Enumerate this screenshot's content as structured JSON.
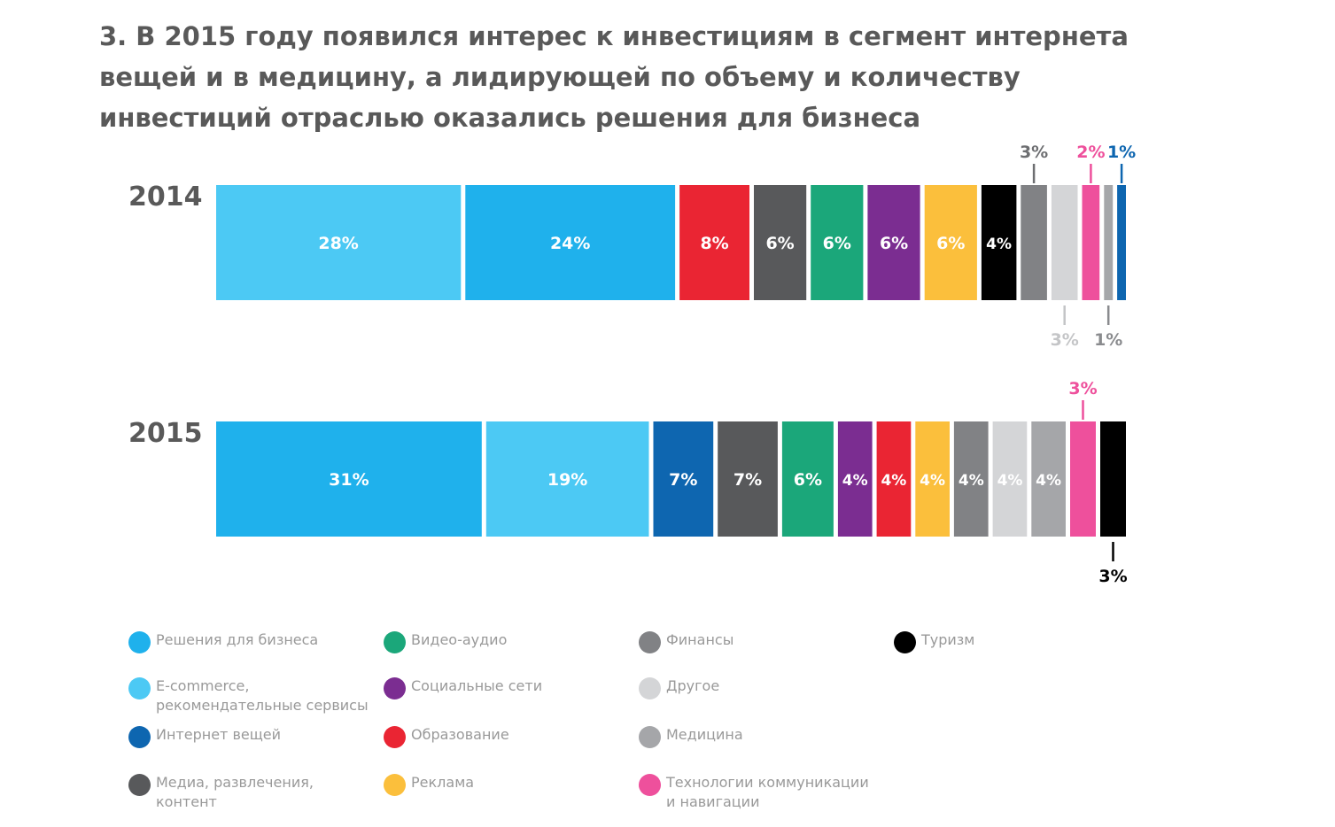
{
  "title": "3. В 2015 году появился интерес к инвестициям в сегмент интернета вещей и в медицину, а лидирующей по объему и количеству инвестиций отраслью оказались решения для бизнеса",
  "chart_data": {
    "type": "bar",
    "orientation": "horizontal",
    "stacked": true,
    "normalized_100": true,
    "categories": [
      {
        "key": "business",
        "name": "Решения для бизнеса",
        "color": "#1fb1ec"
      },
      {
        "key": "ecommerce",
        "name": "E-commerce,\nрекомендательные сервисы",
        "color": "#4cc9f4"
      },
      {
        "key": "iot",
        "name": "Интернет вещей",
        "color": "#0e66b0"
      },
      {
        "key": "media",
        "name": "Медиа, развлечения,\nконтент",
        "color": "#58595b"
      },
      {
        "key": "video",
        "name": "Видео-аудио",
        "color": "#1ba77a"
      },
      {
        "key": "social",
        "name": "Социальные сети",
        "color": "#7b2d91"
      },
      {
        "key": "education",
        "name": "Образование",
        "color": "#ea2533"
      },
      {
        "key": "ads",
        "name": "Реклама",
        "color": "#fbbf3c"
      },
      {
        "key": "finance",
        "name": "Финансы",
        "color": "#818285"
      },
      {
        "key": "other",
        "name": "Другое",
        "color": "#d4d5d7"
      },
      {
        "key": "medicine",
        "name": "Медицина",
        "color": "#a5a6a9"
      },
      {
        "key": "telecom",
        "name": "Технологии коммуникации\nи навигации",
        "color": "#ee509c"
      },
      {
        "key": "tourism",
        "name": "Туризм",
        "color": "#000000"
      }
    ],
    "bars": [
      {
        "year": "2014",
        "segments": [
          {
            "key": "ecommerce",
            "value": 28,
            "label": "28%"
          },
          {
            "key": "business",
            "value": 24,
            "label": "24%"
          },
          {
            "key": "education",
            "value": 8,
            "label": "8%"
          },
          {
            "key": "media",
            "value": 6,
            "label": "6%"
          },
          {
            "key": "video",
            "value": 6,
            "label": "6%"
          },
          {
            "key": "social",
            "value": 6,
            "label": "6%"
          },
          {
            "key": "ads",
            "value": 6,
            "label": "6%"
          },
          {
            "key": "tourism",
            "value": 4,
            "label": "4%"
          },
          {
            "key": "finance",
            "value": 3,
            "label": "3%",
            "label_pos": "above"
          },
          {
            "key": "other",
            "value": 3,
            "label": "3%",
            "label_pos": "below"
          },
          {
            "key": "telecom",
            "value": 2,
            "label": "2%",
            "label_pos": "above"
          },
          {
            "key": "medicine",
            "value": 1,
            "label": "1%",
            "label_pos": "below"
          },
          {
            "key": "iot",
            "value": 1,
            "label": "1%",
            "label_pos": "above"
          }
        ]
      },
      {
        "year": "2015",
        "segments": [
          {
            "key": "business",
            "value": 31,
            "label": "31%"
          },
          {
            "key": "ecommerce",
            "value": 19,
            "label": "19%"
          },
          {
            "key": "iot",
            "value": 7,
            "label": "7%"
          },
          {
            "key": "media",
            "value": 7,
            "label": "7%"
          },
          {
            "key": "video",
            "value": 6,
            "label": "6%"
          },
          {
            "key": "social",
            "value": 4,
            "label": "4%"
          },
          {
            "key": "education",
            "value": 4,
            "label": "4%"
          },
          {
            "key": "ads",
            "value": 4,
            "label": "4%"
          },
          {
            "key": "finance",
            "value": 4,
            "label": "4%"
          },
          {
            "key": "other",
            "value": 4,
            "label": "4%"
          },
          {
            "key": "medicine",
            "value": 4,
            "label": "4%"
          },
          {
            "key": "telecom",
            "value": 3,
            "label": "3%",
            "label_pos": "above"
          },
          {
            "key": "tourism",
            "value": 3,
            "label": "3%",
            "label_pos": "below"
          }
        ]
      }
    ],
    "legend_order": [
      [
        "business",
        "ecommerce",
        "iot",
        "media"
      ],
      [
        "video",
        "social",
        "education",
        "ads"
      ],
      [
        "finance",
        "other",
        "medicine",
        "telecom"
      ],
      [
        "tourism"
      ]
    ]
  }
}
